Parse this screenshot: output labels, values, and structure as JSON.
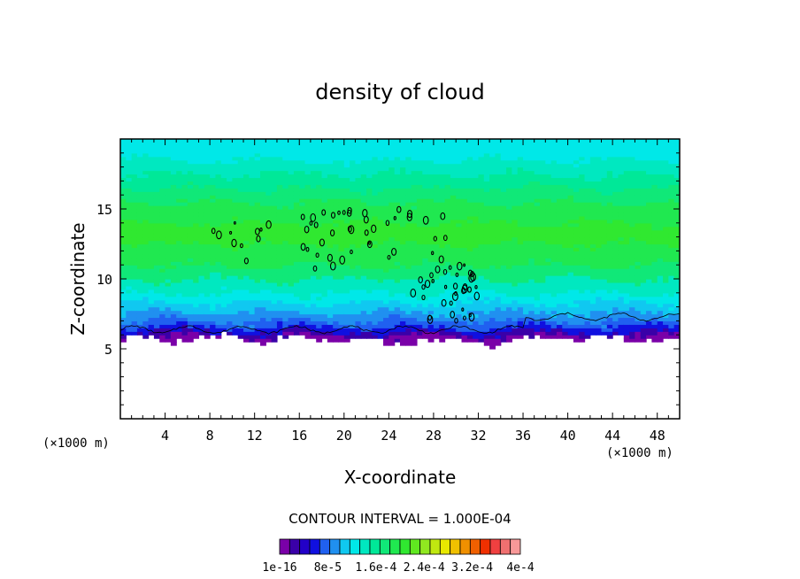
{
  "chart_data": {
    "type": "heatmap",
    "title": "density of cloud",
    "xlabel": "X-coordinate",
    "ylabel": "Z-coordinate",
    "x_unit": "(×1000 m)",
    "y_unit": "(×1000 m)",
    "xlim": [
      0,
      50
    ],
    "ylim": [
      0,
      20
    ],
    "x_ticks": [
      "4",
      "8",
      "12",
      "16",
      "20",
      "24",
      "28",
      "32",
      "36",
      "40",
      "44",
      "48"
    ],
    "x_tick_values": [
      4,
      8,
      12,
      16,
      20,
      24,
      28,
      32,
      36,
      40,
      44,
      48
    ],
    "y_ticks": [
      "5",
      "10",
      "15"
    ],
    "y_tick_values": [
      5,
      10,
      15
    ],
    "contour_interval_label": "CONTOUR INTERVAL = 1.000E-04",
    "colorbar_labels": [
      "1e-16",
      "8e-5",
      "1.6e-4",
      "2.4e-4",
      "3.2e-4",
      "4e-4"
    ],
    "colorbar_min": 1e-16,
    "colorbar_max": 0.0004,
    "colormap": [
      "#7a00a8",
      "#3a00a8",
      "#2200c8",
      "#1010e0",
      "#2060f0",
      "#2090f0",
      "#10c8f0",
      "#00e8e8",
      "#00e8c0",
      "#00e898",
      "#10e878",
      "#20e850",
      "#30e830",
      "#60e820",
      "#90e820",
      "#c0e810",
      "#e8e800",
      "#f0c000",
      "#f09000",
      "#f06000",
      "#f03000",
      "#f04040",
      "#f07070",
      "#f89898"
    ],
    "fill_bottom_z": 5.4,
    "cloud_base_z": 6.3,
    "description_of_field": "Layered cloud density decreasing in colour from purple base (~5-6 km) through blue, cyan, to green core (9-15 km) and cyan top (~17-20 km); small black contour cells near x=8-32 km, z=10-15 km."
  }
}
